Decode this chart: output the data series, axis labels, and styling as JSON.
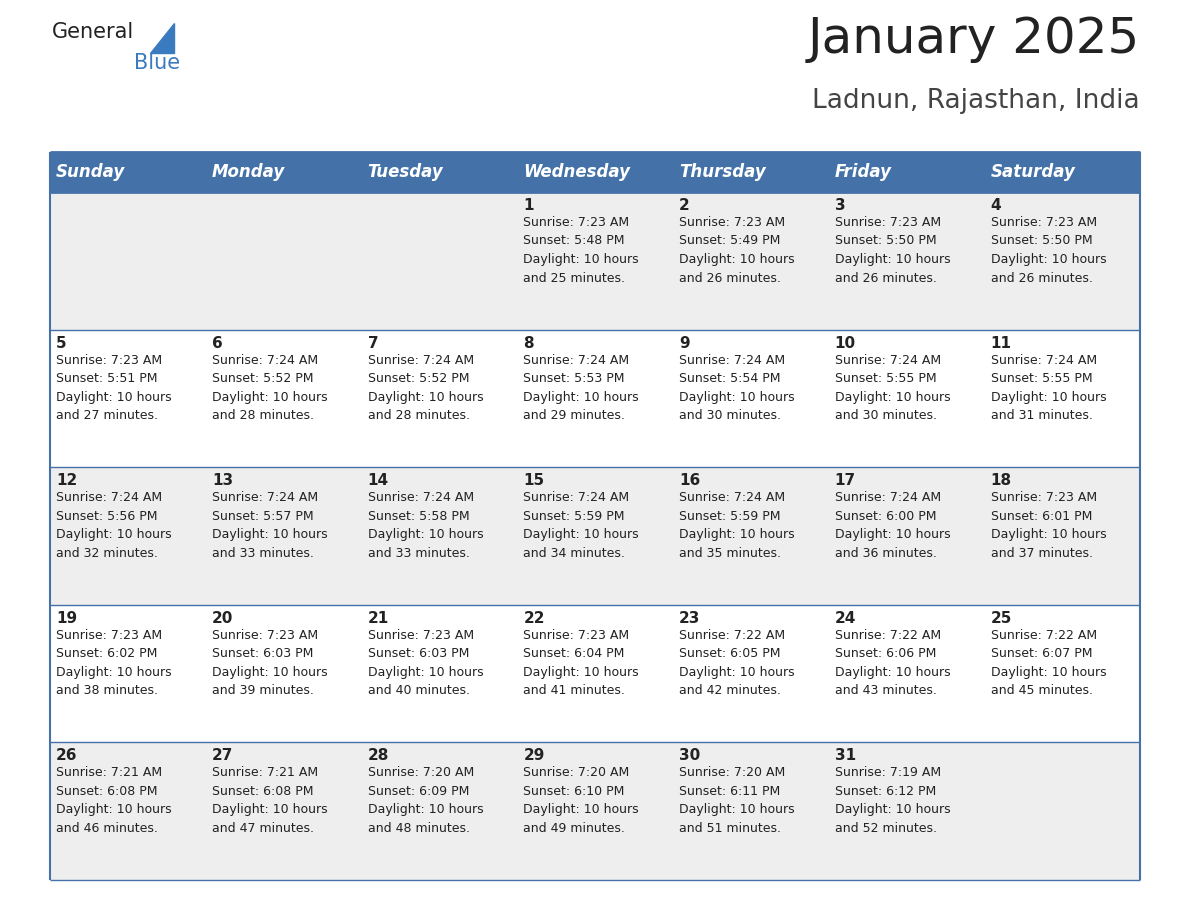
{
  "title": "January 2025",
  "subtitle": "Ladnun, Rajasthan, India",
  "header_bg": "#4472a8",
  "header_text": "#ffffff",
  "row_bg_odd": "#eeeeee",
  "row_bg_even": "#ffffff",
  "border_color": "#4472a8",
  "day_headers": [
    "Sunday",
    "Monday",
    "Tuesday",
    "Wednesday",
    "Thursday",
    "Friday",
    "Saturday"
  ],
  "calendar": [
    [
      {
        "day": "",
        "info": ""
      },
      {
        "day": "",
        "info": ""
      },
      {
        "day": "",
        "info": ""
      },
      {
        "day": "1",
        "info": "Sunrise: 7:23 AM\nSunset: 5:48 PM\nDaylight: 10 hours\nand 25 minutes."
      },
      {
        "day": "2",
        "info": "Sunrise: 7:23 AM\nSunset: 5:49 PM\nDaylight: 10 hours\nand 26 minutes."
      },
      {
        "day": "3",
        "info": "Sunrise: 7:23 AM\nSunset: 5:50 PM\nDaylight: 10 hours\nand 26 minutes."
      },
      {
        "day": "4",
        "info": "Sunrise: 7:23 AM\nSunset: 5:50 PM\nDaylight: 10 hours\nand 26 minutes."
      }
    ],
    [
      {
        "day": "5",
        "info": "Sunrise: 7:23 AM\nSunset: 5:51 PM\nDaylight: 10 hours\nand 27 minutes."
      },
      {
        "day": "6",
        "info": "Sunrise: 7:24 AM\nSunset: 5:52 PM\nDaylight: 10 hours\nand 28 minutes."
      },
      {
        "day": "7",
        "info": "Sunrise: 7:24 AM\nSunset: 5:52 PM\nDaylight: 10 hours\nand 28 minutes."
      },
      {
        "day": "8",
        "info": "Sunrise: 7:24 AM\nSunset: 5:53 PM\nDaylight: 10 hours\nand 29 minutes."
      },
      {
        "day": "9",
        "info": "Sunrise: 7:24 AM\nSunset: 5:54 PM\nDaylight: 10 hours\nand 30 minutes."
      },
      {
        "day": "10",
        "info": "Sunrise: 7:24 AM\nSunset: 5:55 PM\nDaylight: 10 hours\nand 30 minutes."
      },
      {
        "day": "11",
        "info": "Sunrise: 7:24 AM\nSunset: 5:55 PM\nDaylight: 10 hours\nand 31 minutes."
      }
    ],
    [
      {
        "day": "12",
        "info": "Sunrise: 7:24 AM\nSunset: 5:56 PM\nDaylight: 10 hours\nand 32 minutes."
      },
      {
        "day": "13",
        "info": "Sunrise: 7:24 AM\nSunset: 5:57 PM\nDaylight: 10 hours\nand 33 minutes."
      },
      {
        "day": "14",
        "info": "Sunrise: 7:24 AM\nSunset: 5:58 PM\nDaylight: 10 hours\nand 33 minutes."
      },
      {
        "day": "15",
        "info": "Sunrise: 7:24 AM\nSunset: 5:59 PM\nDaylight: 10 hours\nand 34 minutes."
      },
      {
        "day": "16",
        "info": "Sunrise: 7:24 AM\nSunset: 5:59 PM\nDaylight: 10 hours\nand 35 minutes."
      },
      {
        "day": "17",
        "info": "Sunrise: 7:24 AM\nSunset: 6:00 PM\nDaylight: 10 hours\nand 36 minutes."
      },
      {
        "day": "18",
        "info": "Sunrise: 7:23 AM\nSunset: 6:01 PM\nDaylight: 10 hours\nand 37 minutes."
      }
    ],
    [
      {
        "day": "19",
        "info": "Sunrise: 7:23 AM\nSunset: 6:02 PM\nDaylight: 10 hours\nand 38 minutes."
      },
      {
        "day": "20",
        "info": "Sunrise: 7:23 AM\nSunset: 6:03 PM\nDaylight: 10 hours\nand 39 minutes."
      },
      {
        "day": "21",
        "info": "Sunrise: 7:23 AM\nSunset: 6:03 PM\nDaylight: 10 hours\nand 40 minutes."
      },
      {
        "day": "22",
        "info": "Sunrise: 7:23 AM\nSunset: 6:04 PM\nDaylight: 10 hours\nand 41 minutes."
      },
      {
        "day": "23",
        "info": "Sunrise: 7:22 AM\nSunset: 6:05 PM\nDaylight: 10 hours\nand 42 minutes."
      },
      {
        "day": "24",
        "info": "Sunrise: 7:22 AM\nSunset: 6:06 PM\nDaylight: 10 hours\nand 43 minutes."
      },
      {
        "day": "25",
        "info": "Sunrise: 7:22 AM\nSunset: 6:07 PM\nDaylight: 10 hours\nand 45 minutes."
      }
    ],
    [
      {
        "day": "26",
        "info": "Sunrise: 7:21 AM\nSunset: 6:08 PM\nDaylight: 10 hours\nand 46 minutes."
      },
      {
        "day": "27",
        "info": "Sunrise: 7:21 AM\nSunset: 6:08 PM\nDaylight: 10 hours\nand 47 minutes."
      },
      {
        "day": "28",
        "info": "Sunrise: 7:20 AM\nSunset: 6:09 PM\nDaylight: 10 hours\nand 48 minutes."
      },
      {
        "day": "29",
        "info": "Sunrise: 7:20 AM\nSunset: 6:10 PM\nDaylight: 10 hours\nand 49 minutes."
      },
      {
        "day": "30",
        "info": "Sunrise: 7:20 AM\nSunset: 6:11 PM\nDaylight: 10 hours\nand 51 minutes."
      },
      {
        "day": "31",
        "info": "Sunrise: 7:19 AM\nSunset: 6:12 PM\nDaylight: 10 hours\nand 52 minutes."
      },
      {
        "day": "",
        "info": ""
      }
    ]
  ],
  "title_fontsize": 36,
  "subtitle_fontsize": 19,
  "header_fontsize": 12,
  "day_num_fontsize": 11,
  "info_fontsize": 9
}
